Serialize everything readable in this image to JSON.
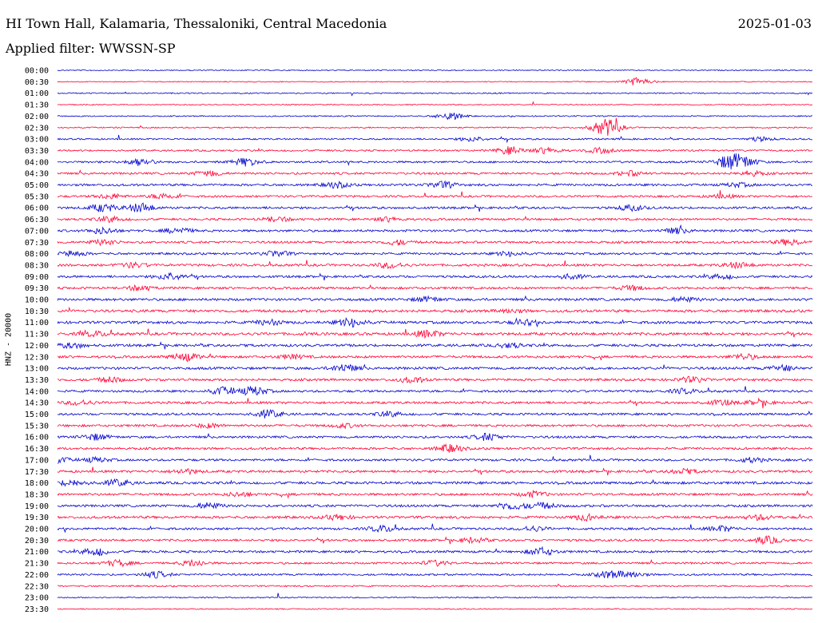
{
  "header": {
    "title": "HI Town Hall, Kalamaria, Thessaloniki, Central Macedonia",
    "date": "2025-01-03",
    "filter": "Applied filter: WWSSN-SP"
  },
  "colors": {
    "even_trace": "#0000cc",
    "odd_trace": "#ff0033",
    "background": "#ffffff",
    "text": "#000000"
  },
  "chart_data": {
    "type": "line",
    "title": "",
    "xlabel": "",
    "ylabel": "HNZ - 20000",
    "grid": false,
    "row_labels": [
      "00:00",
      "00:30",
      "01:00",
      "01:30",
      "02:00",
      "02:30",
      "03:00",
      "03:30",
      "04:00",
      "04:30",
      "05:00",
      "05:30",
      "06:00",
      "06:30",
      "07:00",
      "07:30",
      "08:00",
      "08:30",
      "09:00",
      "09:30",
      "10:00",
      "10:30",
      "11:00",
      "11:30",
      "12:00",
      "12:30",
      "13:00",
      "13:30",
      "14:00",
      "14:30",
      "15:00",
      "15:30",
      "16:00",
      "16:30",
      "17:00",
      "17:30",
      "18:00",
      "18:30",
      "19:00",
      "19:30",
      "20:00",
      "20:30",
      "21:00",
      "21:30",
      "22:00",
      "22:30",
      "23:00",
      "23:30"
    ],
    "row_noise_level": [
      0.15,
      0.1,
      0.2,
      0.15,
      0.2,
      0.25,
      0.35,
      0.4,
      0.5,
      0.55,
      0.6,
      0.55,
      0.6,
      0.55,
      0.6,
      0.6,
      0.55,
      0.65,
      0.6,
      0.6,
      0.7,
      0.75,
      0.75,
      0.8,
      0.7,
      0.65,
      0.7,
      0.65,
      0.6,
      0.65,
      0.6,
      0.6,
      0.6,
      0.6,
      0.6,
      0.65,
      0.7,
      0.65,
      0.65,
      0.7,
      0.6,
      0.6,
      0.6,
      0.5,
      0.45,
      0.3,
      0.2,
      0.15
    ],
    "events": [
      [],
      [
        [
          0.77,
          0.6
        ]
      ],
      [],
      [],
      [
        [
          0.52,
          0.5
        ]
      ],
      [
        [
          0.73,
          0.9
        ],
        [
          0.72,
          0.3
        ]
      ],
      [
        [
          0.55,
          0.3
        ],
        [
          0.93,
          0.25
        ]
      ],
      [
        [
          0.6,
          0.5
        ],
        [
          0.65,
          0.4
        ],
        [
          0.72,
          0.35
        ]
      ],
      [
        [
          0.11,
          0.45
        ],
        [
          0.25,
          0.5
        ],
        [
          0.89,
          0.9
        ],
        [
          0.91,
          0.6
        ]
      ],
      [
        [
          0.2,
          0.35
        ],
        [
          0.76,
          0.3
        ],
        [
          0.92,
          0.3
        ]
      ],
      [
        [
          0.37,
          0.35
        ],
        [
          0.51,
          0.4
        ],
        [
          0.9,
          0.25
        ]
      ],
      [
        [
          0.07,
          0.3
        ],
        [
          0.14,
          0.35
        ],
        [
          0.88,
          0.25
        ]
      ],
      [
        [
          0.06,
          0.5
        ],
        [
          0.11,
          0.6
        ],
        [
          0.76,
          0.35
        ]
      ],
      [
        [
          0.07,
          0.35
        ],
        [
          0.29,
          0.3
        ],
        [
          0.44,
          0.25
        ]
      ],
      [
        [
          0.06,
          0.4
        ],
        [
          0.16,
          0.35
        ],
        [
          0.82,
          0.35
        ]
      ],
      [
        [
          0.06,
          0.3
        ],
        [
          0.45,
          0.3
        ],
        [
          0.97,
          0.4
        ]
      ],
      [
        [
          0.02,
          0.35
        ],
        [
          0.29,
          0.35
        ],
        [
          0.6,
          0.3
        ]
      ],
      [
        [
          0.1,
          0.3
        ],
        [
          0.44,
          0.35
        ],
        [
          0.9,
          0.35
        ]
      ],
      [
        [
          0.15,
          0.5
        ],
        [
          0.68,
          0.3
        ],
        [
          0.88,
          0.3
        ]
      ],
      [
        [
          0.11,
          0.3
        ],
        [
          0.76,
          0.3
        ]
      ],
      [
        [
          0.49,
          0.3
        ],
        [
          0.83,
          0.3
        ]
      ],
      [
        [
          0.6,
          0.25
        ]
      ],
      [
        [
          0.28,
          0.35
        ],
        [
          0.39,
          0.55
        ],
        [
          0.62,
          0.3
        ]
      ],
      [
        [
          0.05,
          0.3
        ],
        [
          0.49,
          0.45
        ]
      ],
      [
        [
          0.02,
          0.3
        ],
        [
          0.6,
          0.3
        ]
      ],
      [
        [
          0.17,
          0.5
        ],
        [
          0.31,
          0.25
        ],
        [
          0.91,
          0.35
        ]
      ],
      [
        [
          0.38,
          0.5
        ],
        [
          0.96,
          0.35
        ]
      ],
      [
        [
          0.07,
          0.3
        ],
        [
          0.47,
          0.35
        ],
        [
          0.84,
          0.35
        ]
      ],
      [
        [
          0.22,
          0.5
        ],
        [
          0.26,
          0.6
        ],
        [
          0.83,
          0.3
        ]
      ],
      [
        [
          0.03,
          0.3
        ],
        [
          0.88,
          0.3
        ],
        [
          0.93,
          0.3
        ]
      ],
      [
        [
          0.28,
          0.5
        ],
        [
          0.44,
          0.3
        ]
      ],
      [
        [
          0.2,
          0.25
        ],
        [
          0.38,
          0.25
        ]
      ],
      [
        [
          0.05,
          0.4
        ],
        [
          0.57,
          0.45
        ]
      ],
      [
        [
          0.52,
          0.5
        ]
      ],
      [
        [
          0.0,
          0.35
        ],
        [
          0.05,
          0.3
        ],
        [
          0.92,
          0.3
        ]
      ],
      [
        [
          0.17,
          0.3
        ],
        [
          0.83,
          0.3
        ]
      ],
      [
        [
          0.02,
          0.4
        ],
        [
          0.08,
          0.4
        ]
      ],
      [
        [
          0.63,
          0.35
        ],
        [
          0.24,
          0.25
        ]
      ],
      [
        [
          0.2,
          0.4
        ],
        [
          0.6,
          0.45
        ],
        [
          0.64,
          0.4
        ]
      ],
      [
        [
          0.37,
          0.3
        ],
        [
          0.7,
          0.35
        ],
        [
          0.93,
          0.3
        ]
      ],
      [
        [
          0.43,
          0.4
        ],
        [
          0.63,
          0.3
        ],
        [
          0.88,
          0.35
        ]
      ],
      [
        [
          0.55,
          0.3
        ],
        [
          0.94,
          0.45
        ]
      ],
      [
        [
          0.05,
          0.5
        ],
        [
          0.64,
          0.5
        ]
      ],
      [
        [
          0.08,
          0.4
        ],
        [
          0.18,
          0.4
        ],
        [
          0.5,
          0.35
        ]
      ],
      [
        [
          0.13,
          0.4
        ],
        [
          0.73,
          0.45
        ],
        [
          0.76,
          0.4
        ]
      ],
      [],
      [],
      []
    ]
  }
}
